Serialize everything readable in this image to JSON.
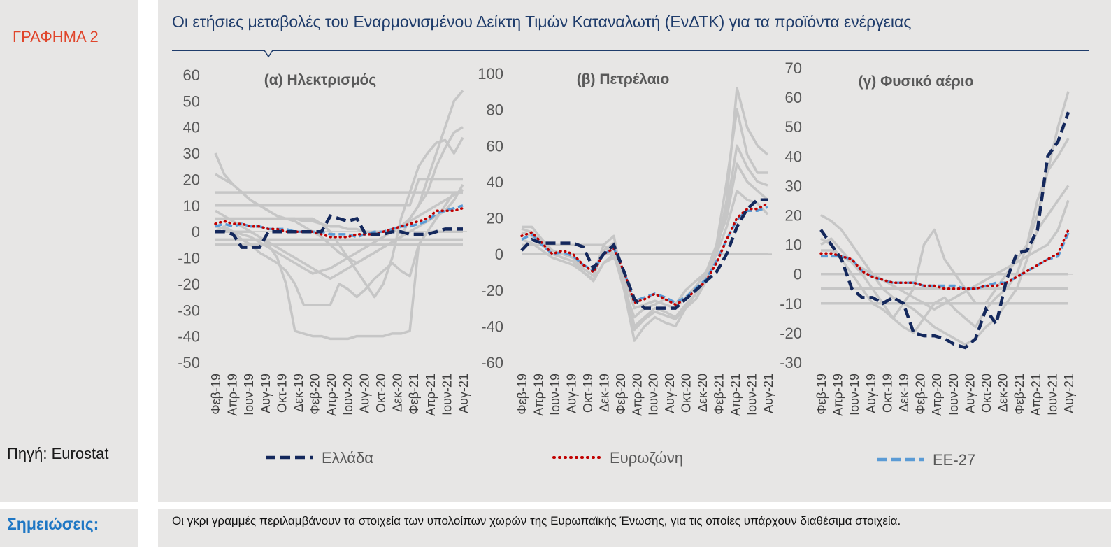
{
  "graph_label": "ΓΡΑΦΗΜΑ 2",
  "title": "Οι ετήσιες μεταβολές του Εναρμονισμένου Δείκτη Τιμών Καταναλωτή (ΕνΔΤΚ) για τα προϊόντα ενέργειας",
  "source": "Πηγή: Eurostat",
  "notes_title": "Σημειώσεις:",
  "notes_text": "Οι γκρι γραμμές περιλαμβάνουν τα στοιχεία των υπολοίπων χωρών της Ευρωπαϊκής Ένωσης, για τις οποίες υπάρχουν διαθέσιμα στοιχεία.",
  "colors": {
    "greece": "#14285c",
    "eurozone": "#c00000",
    "eu27": "#5b9bd5",
    "others": "#c6c6c6",
    "title": "#1f3c6b"
  },
  "legend": [
    {
      "label": "Ελλάδα",
      "style": "dashed-dark"
    },
    {
      "label": "Ευρωζώνη",
      "style": "dotted-red"
    },
    {
      "label": "ΕΕ-27",
      "style": "dashed-blue"
    }
  ],
  "chart_data": [
    {
      "type": "line",
      "title": "(α) Ηλεκτρισμός",
      "ylim": [
        -50,
        60
      ],
      "yticks": [
        60,
        50,
        40,
        30,
        20,
        10,
        0,
        -10,
        -20,
        -30,
        -40,
        -50
      ],
      "xticks": [
        "Φεβ-19",
        "Απρ-19",
        "Ιουν-19",
        "Αυγ-19",
        "Οκτ-19",
        "Δεκ-19",
        "Φεβ-20",
        "Απρ-20",
        "Ιουν-20",
        "Αυγ-20",
        "Οκτ-20",
        "Δεκ-20",
        "Φεβ-21",
        "Απρ-21",
        "Ιουν-21",
        "Αυγ-21"
      ],
      "series": [
        {
          "name": "Ελλάδα",
          "values": [
            0,
            0,
            -1,
            -6,
            -6,
            -6,
            0,
            0,
            0,
            0,
            0,
            0,
            0,
            6,
            5,
            4,
            5,
            -1,
            -1,
            -1,
            0,
            0,
            -1,
            -1,
            -1,
            0,
            1,
            1,
            1
          ]
        },
        {
          "name": "Ευρωζώνη",
          "values": [
            3,
            4,
            3,
            3,
            2,
            2,
            1,
            1,
            0,
            0,
            0,
            0,
            -1,
            -2,
            -2,
            -2,
            -1,
            -1,
            -1,
            0,
            1,
            2,
            3,
            4,
            5,
            8,
            8,
            8,
            9
          ]
        },
        {
          "name": "ΕΕ-27",
          "values": [
            2,
            3,
            2,
            3,
            2,
            2,
            1,
            1,
            1,
            0,
            0,
            0,
            0,
            -1,
            -1,
            -1,
            -2,
            -1,
            0,
            0,
            1,
            2,
            2,
            3,
            4,
            7,
            8,
            9,
            10
          ]
        },
        {
          "name": "others",
          "values": [
            [
              30,
              22,
              18,
              15,
              12,
              10,
              8,
              6,
              5,
              5,
              4,
              4,
              3,
              2,
              2,
              1,
              1,
              0,
              0,
              0,
              0,
              2,
              5,
              10,
              20,
              30,
              40,
              50,
              54
            ],
            [
              22,
              20,
              18,
              15,
              12,
              10,
              8,
              6,
              5,
              4,
              2,
              0,
              -2,
              -5,
              -8,
              -10,
              -12,
              -10,
              -8,
              -6,
              -4,
              -2,
              5,
              10,
              15,
              25,
              32,
              38,
              40
            ],
            [
              0,
              0,
              0,
              0,
              0,
              -2,
              -5,
              -10,
              -20,
              -38,
              -39,
              -40,
              -40,
              -41,
              -41,
              -41,
              -40,
              -40,
              -40,
              -40,
              -39,
              -39,
              -38,
              -5,
              0,
              0,
              0,
              0,
              0
            ],
            [
              0,
              2,
              0,
              -3,
              -5,
              -8,
              -10,
              -12,
              -15,
              -20,
              -28,
              -28,
              -28,
              -28,
              -20,
              -22,
              -25,
              -22,
              -18,
              -15,
              -12,
              -15,
              -17,
              -5,
              0,
              5,
              10,
              15,
              15
            ],
            [
              5,
              5,
              5,
              5,
              5,
              5,
              5,
              5,
              5,
              5,
              5,
              5,
              3,
              0,
              -5,
              -10,
              -15,
              -20,
              -25,
              -20,
              -10,
              5,
              15,
              25,
              30,
              34,
              35,
              30,
              36
            ],
            [
              15,
              15,
              15,
              15,
              15,
              15,
              15,
              15,
              15,
              15,
              15,
              15,
              15,
              15,
              15,
              15,
              15,
              15,
              15,
              15,
              15,
              15,
              15,
              15,
              15,
              15,
              15,
              15,
              15
            ],
            [
              10,
              10,
              10,
              10,
              10,
              10,
              10,
              10,
              10,
              10,
              10,
              10,
              10,
              10,
              10,
              10,
              10,
              10,
              10,
              10,
              10,
              10,
              10,
              20,
              20,
              20,
              20,
              20,
              20
            ],
            [
              -5,
              -5,
              -5,
              -5,
              -5,
              -5,
              -5,
              -5,
              -5,
              -5,
              -5,
              -5,
              -5,
              -5,
              -5,
              -5,
              -5,
              -5,
              -5,
              -5,
              -5,
              -5,
              -5,
              -5,
              -5,
              -5,
              -5,
              -5,
              -5
            ],
            [
              -3,
              -3,
              -3,
              -3,
              -3,
              -3,
              -3,
              -3,
              -3,
              -3,
              -3,
              -3,
              -3,
              -3,
              -3,
              -3,
              -3,
              -3,
              -3,
              -3,
              -3,
              -3,
              -3,
              -3,
              -3,
              -3,
              -3,
              -3,
              -3
            ],
            [
              8,
              6,
              4,
              2,
              0,
              -2,
              -4,
              -6,
              -8,
              -10,
              -12,
              -14,
              -16,
              -18,
              -16,
              -14,
              -12,
              -10,
              -8,
              -6,
              -4,
              -2,
              0,
              2,
              4,
              6,
              8,
              12,
              18
            ],
            [
              2,
              1,
              0,
              -1,
              -2,
              -4,
              -6,
              -8,
              -10,
              -12,
              -14,
              -16,
              -15,
              -14,
              -12,
              -10,
              -8,
              -6,
              -4,
              -2,
              0,
              2,
              4,
              6,
              8,
              10,
              12,
              14,
              16
            ]
          ]
        }
      ]
    },
    {
      "type": "line",
      "title": "(β) Πετρέλαιο",
      "ylim": [
        -60,
        100
      ],
      "yticks": [
        100,
        80,
        60,
        40,
        20,
        0,
        -20,
        -40,
        -60
      ],
      "xticks": [
        "Φεβ-19",
        "Απρ-19",
        "Ιουν-19",
        "Αυγ-19",
        "Οκτ-19",
        "Δεκ-19",
        "Φεβ-20",
        "Απρ-20",
        "Ιουν-20",
        "Αυγ-20",
        "Οκτ-20",
        "Δεκ-20",
        "Φεβ-21",
        "Απρ-21",
        "Ιουν-21",
        "Αυγ-21"
      ],
      "series": [
        {
          "name": "Ελλάδα",
          "values": [
            2,
            8,
            6,
            6,
            6,
            6,
            4,
            -8,
            0,
            5,
            -10,
            -25,
            -30,
            -30,
            -30,
            -30,
            -25,
            -20,
            -15,
            -10,
            0,
            15,
            25,
            30,
            30
          ]
        },
        {
          "name": "Ευρωζώνη",
          "values": [
            10,
            12,
            6,
            0,
            2,
            0,
            -6,
            -10,
            0,
            3,
            -10,
            -27,
            -25,
            -22,
            -25,
            -28,
            -25,
            -20,
            -15,
            -5,
            8,
            20,
            25,
            25,
            28
          ]
        },
        {
          "name": "ΕΕ-27",
          "values": [
            8,
            11,
            5,
            0,
            1,
            -1,
            -6,
            -9,
            0,
            3,
            -10,
            -26,
            -24,
            -22,
            -24,
            -27,
            -24,
            -19,
            -14,
            -4,
            8,
            19,
            24,
            24,
            26
          ]
        },
        {
          "name": "others",
          "values": [
            [
              15,
              15,
              8,
              2,
              0,
              -2,
              -8,
              -12,
              5,
              10,
              -20,
              -48,
              -40,
              -35,
              -38,
              -40,
              -30,
              -25,
              -15,
              0,
              30,
              92,
              70,
              60,
              55
            ],
            [
              12,
              10,
              5,
              0,
              -2,
              -4,
              -10,
              -15,
              -5,
              0,
              -15,
              -40,
              -35,
              -30,
              -32,
              -35,
              -28,
              -22,
              -12,
              5,
              40,
              80,
              55,
              45,
              45
            ],
            [
              5,
              5,
              5,
              5,
              5,
              5,
              5,
              5,
              5,
              0,
              -20,
              -35,
              -30,
              -28,
              -25,
              -28,
              -20,
              -15,
              -10,
              5,
              20,
              50,
              40,
              35,
              30
            ],
            [
              0,
              0,
              0,
              0,
              0,
              0,
              0,
              0,
              0,
              0,
              0,
              0,
              0,
              0,
              0,
              0,
              0,
              0,
              0,
              0,
              0,
              0,
              0,
              0,
              0
            ],
            [
              8,
              6,
              2,
              -2,
              -4,
              -6,
              -10,
              -14,
              -5,
              -2,
              -12,
              -30,
              -28,
              -26,
              -28,
              -30,
              -24,
              -18,
              -10,
              0,
              15,
              35,
              30,
              28,
              22
            ],
            [
              14,
              12,
              6,
              2,
              0,
              -2,
              -8,
              -12,
              2,
              6,
              -16,
              -42,
              -36,
              -32,
              -34,
              -36,
              -30,
              -22,
              -14,
              2,
              25,
              60,
              48,
              40,
              38
            ]
          ]
        }
      ]
    },
    {
      "type": "line",
      "title": "(γ) Φυσικό αέριο",
      "ylim": [
        -30,
        70
      ],
      "yticks": [
        70,
        60,
        50,
        40,
        30,
        20,
        10,
        0,
        -10,
        -20,
        -30
      ],
      "xticks": [
        "Φεβ-19",
        "Απρ-19",
        "Ιουν-19",
        "Αυγ-19",
        "Οκτ-19",
        "Δεκ-19",
        "Φεβ-20",
        "Απρ-20",
        "Ιουν-20",
        "Αυγ-20",
        "Οκτ-20",
        "Δεκ-20",
        "Φεβ-21",
        "Απρ-21",
        "Ιουν-21",
        "Αυγ-21"
      ],
      "series": [
        {
          "name": "Ελλάδα",
          "values": [
            15,
            10,
            5,
            -5,
            -8,
            -8,
            -10,
            -8,
            -10,
            -20,
            -21,
            -21,
            -22,
            -24,
            -25,
            -22,
            -12,
            -17,
            -2,
            7,
            8,
            15,
            40,
            45,
            55
          ]
        },
        {
          "name": "Ευρωζώνη",
          "values": [
            7,
            7,
            6,
            5,
            1,
            -1,
            -2,
            -3,
            -3,
            -3,
            -4,
            -4,
            -5,
            -5,
            -5,
            -5,
            -4,
            -4,
            -3,
            -1,
            1,
            3,
            5,
            7,
            15
          ]
        },
        {
          "name": "ΕΕ-27",
          "values": [
            6,
            6,
            6,
            5,
            1,
            -1,
            -2,
            -3,
            -3,
            -3,
            -4,
            -4,
            -4,
            -4,
            -5,
            -5,
            -4,
            -3,
            -3,
            -1,
            1,
            3,
            5,
            6,
            14
          ]
        },
        {
          "name": "others",
          "values": [
            [
              10,
              12,
              8,
              4,
              0,
              -5,
              -10,
              -15,
              -10,
              -5,
              10,
              15,
              5,
              0,
              -5,
              -10,
              -10,
              -5,
              0,
              5,
              10,
              20,
              35,
              50,
              62
            ],
            [
              12,
              10,
              5,
              0,
              -5,
              -10,
              -12,
              -15,
              -18,
              -20,
              -15,
              -10,
              -8,
              -12,
              -15,
              -18,
              -12,
              -8,
              -5,
              0,
              10,
              25,
              35,
              40,
              46
            ],
            [
              0,
              0,
              0,
              0,
              0,
              0,
              0,
              0,
              0,
              0,
              0,
              0,
              0,
              0,
              0,
              0,
              0,
              0,
              0,
              0,
              0,
              0,
              0,
              0,
              0
            ],
            [
              -10,
              -10,
              -10,
              -10,
              -10,
              -10,
              -10,
              -10,
              -10,
              -10,
              -10,
              -10,
              -10,
              -10,
              -10,
              -10,
              -10,
              -10,
              -10,
              -10,
              -10,
              -10,
              -10,
              -10,
              -10
            ],
            [
              20,
              18,
              15,
              10,
              5,
              0,
              -5,
              -8,
              -10,
              -12,
              -15,
              -18,
              -20,
              -22,
              -24,
              -22,
              -18,
              -15,
              -10,
              -5,
              5,
              15,
              20,
              25,
              30
            ],
            [
              8,
              8,
              6,
              4,
              2,
              0,
              -2,
              -4,
              -6,
              -8,
              -10,
              -12,
              -10,
              -8,
              -6,
              -4,
              -2,
              0,
              2,
              4,
              6,
              8,
              10,
              15,
              25
            ],
            [
              -5,
              -5,
              -5,
              -5,
              -5,
              -5,
              -5,
              -5,
              -5,
              -5,
              -5,
              -5,
              -5,
              -5,
              -5,
              -5,
              -5,
              -5,
              -5,
              -5,
              -5,
              -5,
              -5,
              -5,
              -5
            ]
          ]
        }
      ]
    }
  ]
}
